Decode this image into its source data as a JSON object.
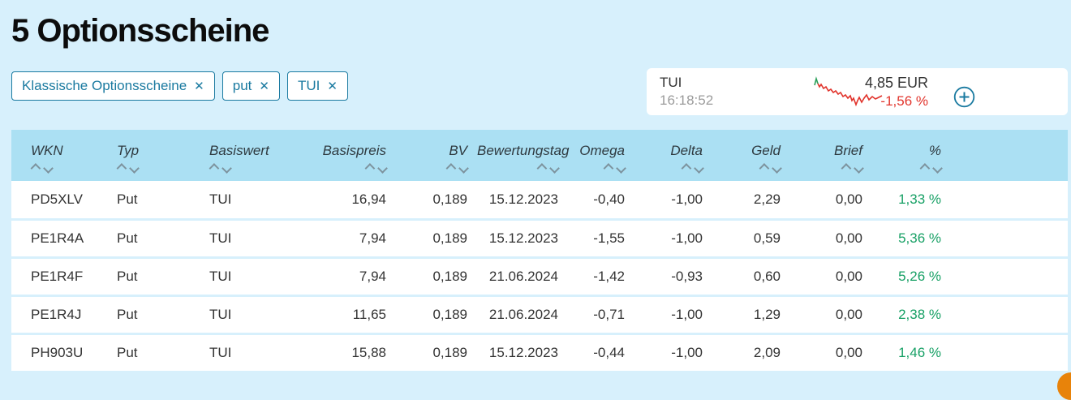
{
  "page": {
    "title": "5 Optionsscheine"
  },
  "filters": [
    {
      "label": "Klassische Optionsscheine",
      "remove_icon": "close-x"
    },
    {
      "label": "put",
      "remove_icon": "close-x"
    },
    {
      "label": "TUI",
      "remove_icon": "close-x"
    }
  ],
  "quote_widget": {
    "name": "TUI",
    "time": "16:18:52",
    "price": "4,85 EUR",
    "change": "-1,56 %",
    "sparkline_trend": "falling",
    "add_icon": "plus-circle"
  },
  "table": {
    "columns": [
      {
        "key": "wkn",
        "label": "WKN",
        "align": "left"
      },
      {
        "key": "typ",
        "label": "Typ",
        "align": "left"
      },
      {
        "key": "basiswert",
        "label": "Basiswert",
        "align": "left"
      },
      {
        "key": "basispreis",
        "label": "Basispreis",
        "align": "right"
      },
      {
        "key": "bv",
        "label": "BV",
        "align": "right"
      },
      {
        "key": "bewertungstag",
        "label": "Bewertungstag",
        "align": "right"
      },
      {
        "key": "omega",
        "label": "Omega",
        "align": "right"
      },
      {
        "key": "delta",
        "label": "Delta",
        "align": "right"
      },
      {
        "key": "geld",
        "label": "Geld",
        "align": "right"
      },
      {
        "key": "brief",
        "label": "Brief",
        "align": "right"
      },
      {
        "key": "pct",
        "label": "%",
        "align": "right"
      }
    ],
    "rows": [
      [
        "PD5XLV",
        "Put",
        "TUI",
        "16,94",
        "0,189",
        "15.12.2023",
        "-0,40",
        "-1,00",
        "2,29",
        "0,00",
        "1,33 %"
      ],
      [
        "PE1R4A",
        "Put",
        "TUI",
        "7,94",
        "0,189",
        "15.12.2023",
        "-1,55",
        "-1,00",
        "0,59",
        "0,00",
        "5,36 %"
      ],
      [
        "PE1R4F",
        "Put",
        "TUI",
        "7,94",
        "0,189",
        "21.06.2024",
        "-1,42",
        "-0,93",
        "0,60",
        "0,00",
        "5,26 %"
      ],
      [
        "PE1R4J",
        "Put",
        "TUI",
        "11,65",
        "0,189",
        "21.06.2024",
        "-0,71",
        "-1,00",
        "1,29",
        "0,00",
        "2,38 %"
      ],
      [
        "PH903U",
        "Put",
        "TUI",
        "15,88",
        "0,189",
        "15.12.2023",
        "-0,44",
        "-1,00",
        "2,09",
        "0,00",
        "1,46 %"
      ]
    ]
  },
  "colors": {
    "page_background": "#d7f0fc",
    "table_header_background": "#abe0f3",
    "accent_teal": "#1a7aa0",
    "positive_green": "#17a065",
    "negative_red": "#e1332b",
    "corner_fab_orange": "#e8830a"
  }
}
